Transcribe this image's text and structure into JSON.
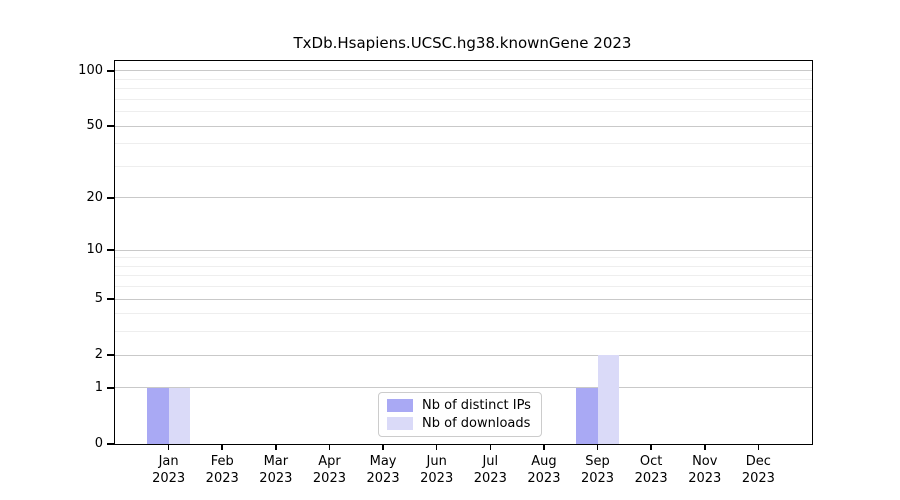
{
  "title": "TxDb.Hsapiens.UCSC.hg38.knownGene 2023",
  "chart_data": {
    "type": "bar",
    "title": "TxDb.Hsapiens.UCSC.hg38.knownGene 2023",
    "categories": [
      "Jan",
      "Feb",
      "Mar",
      "Apr",
      "May",
      "Jun",
      "Jul",
      "Aug",
      "Sep",
      "Oct",
      "Nov",
      "Dec"
    ],
    "x_tick_labels": [
      [
        "Jan",
        "2023"
      ],
      [
        "Feb",
        "2023"
      ],
      [
        "Mar",
        "2023"
      ],
      [
        "Apr",
        "2023"
      ],
      [
        "May",
        "2023"
      ],
      [
        "Jun",
        "2023"
      ],
      [
        "Jul",
        "2023"
      ],
      [
        "Aug",
        "2023"
      ],
      [
        "Sep",
        "2023"
      ],
      [
        "Oct",
        "2023"
      ],
      [
        "Nov",
        "2023"
      ],
      [
        "Dec",
        "2023"
      ]
    ],
    "series": [
      {
        "name": "Nb of distinct IPs",
        "color": "#a9a9f4",
        "values": [
          1,
          0,
          0,
          0,
          0,
          0,
          0,
          0,
          1,
          0,
          0,
          0
        ]
      },
      {
        "name": "Nb of downloads",
        "color": "#dadaf8",
        "values": [
          1,
          0,
          0,
          0,
          0,
          0,
          0,
          0,
          2,
          0,
          0,
          0
        ]
      }
    ],
    "yscale": "log1p",
    "ylim": [
      0,
      113
    ],
    "y_ticks": [
      0,
      1,
      2,
      5,
      10,
      20,
      50,
      100
    ],
    "y_minor_gridlines": [
      3,
      4,
      6,
      7,
      8,
      9,
      30,
      40,
      60,
      70,
      80,
      90
    ],
    "xlabel": "",
    "ylabel": "",
    "grid": "horizontal",
    "legend_position": "lower center"
  },
  "colors": {
    "grid_major": "#c9c9c9",
    "grid_minor": "#eeeeee",
    "axis": "#000000",
    "legend_border": "#cccccc",
    "bar_distinct_ips": "#a9a9f4",
    "bar_downloads": "#dadaf8"
  }
}
